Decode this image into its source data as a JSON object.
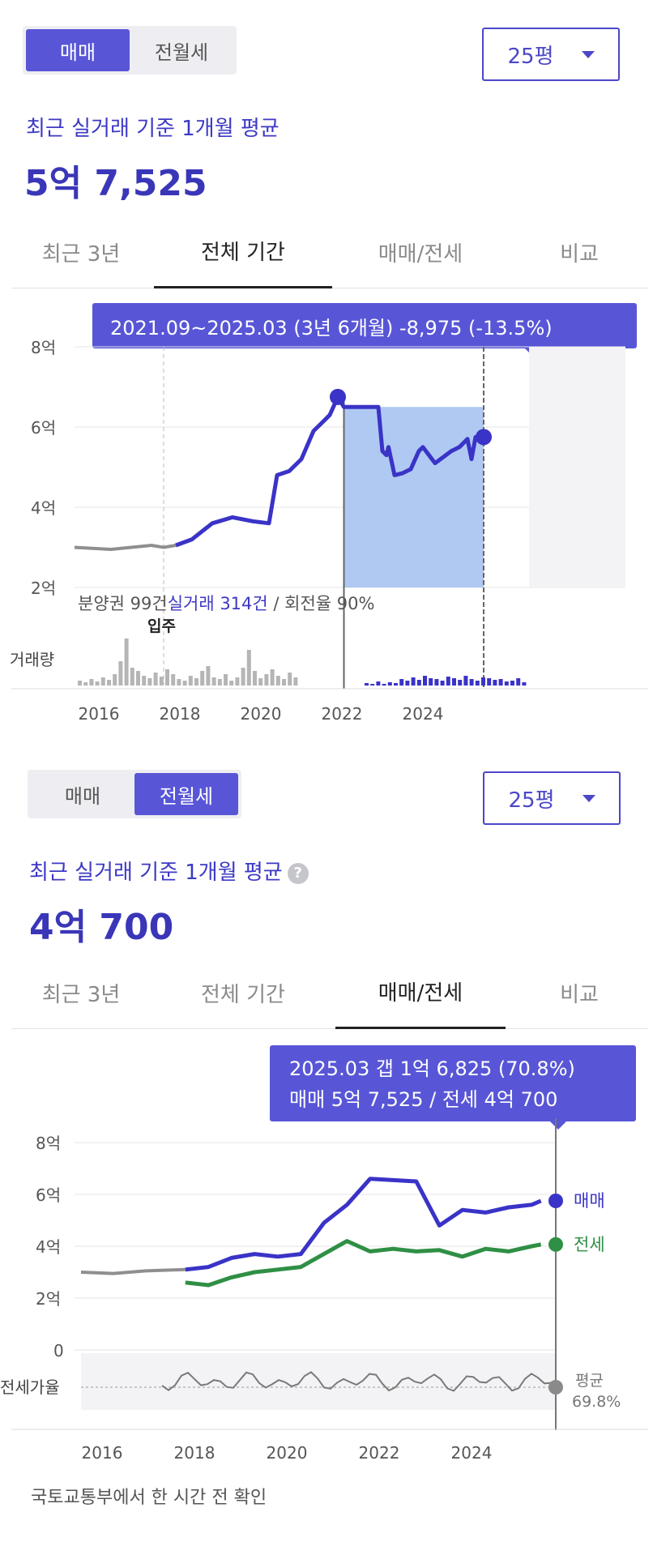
{
  "top": {
    "toggle": {
      "sale": "매매",
      "rent": "전월세",
      "active": "sale"
    },
    "size": "25평",
    "subtitle": "최근 실거래 기준 1개월 평균",
    "price": "5억 7,525",
    "tabs": [
      "최근 3년",
      "전체 기간",
      "매매/전세",
      "비교"
    ],
    "active_tab": 1,
    "tooltip": "2021.09~2025.03 (3년 6개월)  -8,975 (-13.5%)",
    "volume_note": {
      "a": "분양권 99건",
      "b": "실거래 314건",
      "c": " / 회전율 90%"
    },
    "move_in_label": "입주",
    "volume_label": "거래량"
  },
  "bottom": {
    "toggle": {
      "sale": "매매",
      "rent": "전월세",
      "active": "rent"
    },
    "size": "25평",
    "subtitle": "최근 실거래 기준 1개월 평균",
    "help_icon": "?",
    "price": "4억 700",
    "tabs": [
      "최근 3년",
      "전체 기간",
      "매매/전세",
      "비교"
    ],
    "active_tab": 2,
    "tooltip_line1": "2025.03  갭 1억 6,825 (70.8%)",
    "tooltip_line2": "매매 5억 7,525 / 전세 4억 700",
    "ratio_label": "전세가율",
    "avg_label": "평균",
    "avg_value": "69.8%"
  },
  "footer": "국토교통부에서 한 시간 전 확인",
  "chart_data": [
    {
      "type": "line",
      "title": "",
      "x": [
        2015.1,
        2016,
        2017,
        2017.3,
        2017.6,
        2018,
        2018.5,
        2019,
        2019.5,
        2019.9,
        2020.1,
        2020.4,
        2020.7,
        2021,
        2021.2,
        2021.4,
        2021.6,
        2021.75,
        2022,
        2022.3,
        2022.6,
        2022.7,
        2022.8,
        2022.85,
        2023,
        2023.2,
        2023.4,
        2023.6,
        2023.7,
        2024,
        2024.4,
        2024.6,
        2024.8,
        2024.9,
        2025,
        2025.1,
        2025.2
      ],
      "series": [
        {
          "name": "매매",
          "values": [
            3.0,
            2.95,
            3.05,
            3.0,
            3.05,
            3.2,
            3.6,
            3.75,
            3.65,
            3.6,
            4.8,
            4.9,
            5.2,
            5.9,
            6.1,
            6.3,
            6.75,
            6.5,
            6.5,
            6.5,
            6.5,
            5.4,
            5.3,
            5.5,
            4.8,
            4.85,
            4.95,
            5.4,
            5.5,
            5.1,
            5.4,
            5.5,
            5.7,
            5.2,
            5.75,
            5.7,
            5.75
          ]
        }
      ],
      "xticks": [
        "2016",
        "2018",
        "2020",
        "2022",
        "2024"
      ],
      "yticks": [
        "2억",
        "4억",
        "6억",
        "8억"
      ],
      "ylim": [
        2,
        8
      ],
      "highlight_range": [
        "2021.09",
        "2025.03"
      ]
    },
    {
      "type": "line",
      "title": "",
      "x": [
        2017.5,
        2018,
        2018.5,
        2019,
        2019.5,
        2020,
        2020.5,
        2021,
        2021.5,
        2022,
        2022.5,
        2023,
        2023.5,
        2024,
        2024.5,
        2025,
        2025.2
      ],
      "series": [
        {
          "name": "매매",
          "values": [
            3.1,
            3.2,
            3.55,
            3.7,
            3.6,
            3.7,
            4.9,
            5.6,
            6.6,
            6.55,
            6.5,
            4.8,
            5.4,
            5.3,
            5.5,
            5.6,
            5.75
          ]
        },
        {
          "name": "전세",
          "values": [
            2.6,
            2.5,
            2.8,
            3.0,
            3.1,
            3.2,
            3.7,
            4.2,
            3.8,
            3.9,
            3.8,
            3.85,
            3.6,
            3.9,
            3.8,
            4.0,
            4.07
          ]
        }
      ],
      "xticks": [
        "2016",
        "2018",
        "2020",
        "2022",
        "2024"
      ],
      "yticks": [
        "0",
        "2억",
        "4억",
        "6억",
        "8억"
      ],
      "ylim": [
        0,
        8
      ]
    }
  ]
}
